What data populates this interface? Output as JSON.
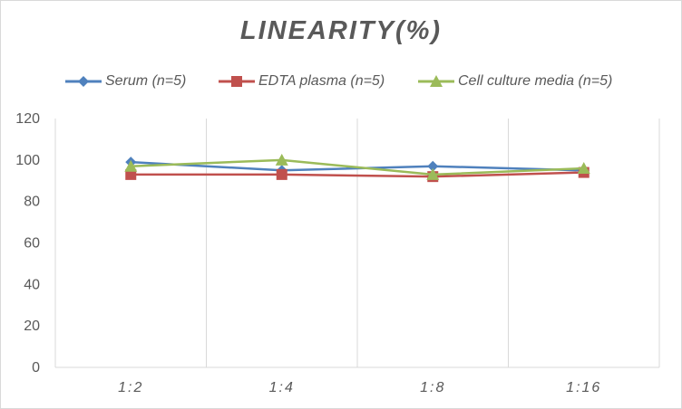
{
  "chart_data": {
    "type": "line",
    "title": "LINEARITY(%)",
    "xlabel": "",
    "ylabel": "",
    "categories": [
      "1:2",
      "1:4",
      "1:8",
      "1:16"
    ],
    "ylim": [
      0,
      120
    ],
    "yticks": [
      0,
      20,
      40,
      60,
      80,
      100,
      120
    ],
    "grid": "vertical",
    "legend": "top",
    "series": [
      {
        "name": "Serum (n=5)",
        "color": "#4f81bd",
        "marker": "diamond",
        "values": [
          99,
          95,
          97,
          95
        ]
      },
      {
        "name": "EDTA plasma (n=5)",
        "color": "#c0504d",
        "marker": "square",
        "values": [
          93,
          93,
          92,
          94
        ]
      },
      {
        "name": "Cell culture media (n=5)",
        "color": "#9bbb59",
        "marker": "triangle",
        "values": [
          97,
          100,
          93,
          96
        ]
      }
    ]
  }
}
